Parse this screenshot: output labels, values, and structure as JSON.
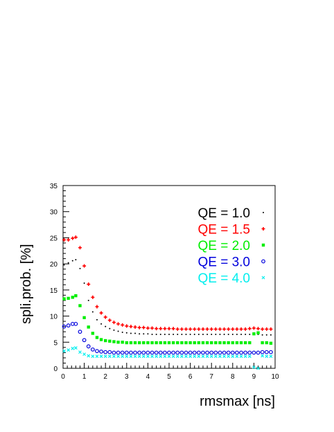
{
  "chart_data": {
    "type": "scatter",
    "title": "",
    "xlabel": "rmsmax [ns]",
    "ylabel": "spli.prob. [%]",
    "xlim": [
      0,
      10
    ],
    "ylim": [
      0,
      35
    ],
    "x_ticks": [
      "0",
      "1",
      "2",
      "3",
      "4",
      "5",
      "6",
      "7",
      "8",
      "9",
      "10"
    ],
    "y_ticks": [
      "0",
      "5",
      "10",
      "15",
      "20",
      "25",
      "30",
      "35"
    ],
    "grid": false,
    "legend_position": "top-right",
    "x": [
      0.05,
      0.25,
      0.45,
      0.6,
      0.8,
      1.0,
      1.2,
      1.4,
      1.6,
      1.8,
      2.0,
      2.2,
      2.4,
      2.6,
      2.8,
      3.0,
      3.2,
      3.4,
      3.6,
      3.8,
      4.0,
      4.2,
      4.4,
      4.6,
      4.8,
      5.0,
      5.2,
      5.4,
      5.6,
      5.8,
      6.0,
      6.2,
      6.4,
      6.6,
      6.8,
      7.0,
      7.2,
      7.4,
      7.6,
      7.8,
      8.0,
      8.2,
      8.4,
      8.6,
      8.8,
      9.0,
      9.2,
      9.4,
      9.6,
      9.8
    ],
    "series": [
      {
        "name": "QE = 1.0",
        "color": "#000000",
        "marker": "dot",
        "values": [
          19.8,
          20.2,
          20.6,
          20.8,
          19.1,
          16.3,
          13.0,
          10.8,
          9.3,
          8.5,
          8.0,
          7.6,
          7.3,
          7.1,
          6.9,
          6.8,
          6.7,
          6.7,
          6.6,
          6.6,
          6.6,
          6.5,
          6.5,
          6.5,
          6.5,
          6.5,
          6.5,
          6.5,
          6.5,
          6.5,
          6.5,
          6.5,
          6.5,
          6.5,
          6.5,
          6.5,
          6.5,
          6.5,
          6.5,
          6.5,
          6.5,
          6.5,
          6.5,
          6.5,
          6.5,
          6.5,
          6.5,
          6.4,
          6.4,
          6.4
        ]
      },
      {
        "name": "QE = 1.5",
        "color": "#ff0000",
        "marker": "plus",
        "values": [
          24.6,
          24.6,
          24.9,
          25.1,
          23.1,
          19.6,
          16.1,
          13.6,
          11.8,
          10.6,
          9.8,
          9.2,
          8.8,
          8.5,
          8.3,
          8.1,
          8.0,
          7.9,
          7.8,
          7.8,
          7.7,
          7.7,
          7.6,
          7.6,
          7.6,
          7.6,
          7.6,
          7.5,
          7.5,
          7.5,
          7.5,
          7.5,
          7.5,
          7.5,
          7.5,
          7.5,
          7.5,
          7.5,
          7.5,
          7.5,
          7.5,
          7.5,
          7.5,
          7.5,
          7.6,
          7.7,
          7.6,
          7.5,
          7.5,
          7.5
        ]
      },
      {
        "name": "QE = 2.0",
        "color": "#00ee00",
        "marker": "square",
        "values": [
          13.3,
          13.4,
          13.6,
          13.9,
          12.0,
          9.7,
          7.9,
          6.7,
          5.9,
          5.5,
          5.3,
          5.2,
          5.1,
          5.0,
          5.0,
          4.9,
          4.9,
          4.9,
          4.9,
          4.9,
          4.9,
          4.9,
          4.9,
          4.9,
          4.9,
          4.9,
          4.9,
          4.9,
          4.9,
          4.9,
          4.9,
          4.9,
          4.9,
          4.9,
          4.9,
          4.9,
          4.9,
          4.9,
          4.9,
          4.9,
          4.9,
          4.9,
          4.9,
          4.9,
          4.9,
          6.6,
          6.8,
          4.9,
          4.9,
          4.8
        ]
      },
      {
        "name": "QE = 3.0",
        "color": "#0000dd",
        "marker": "circle",
        "values": [
          8.0,
          8.2,
          8.5,
          8.5,
          7.0,
          5.4,
          4.2,
          3.6,
          3.3,
          3.2,
          3.1,
          3.1,
          3.0,
          3.0,
          3.0,
          3.0,
          3.0,
          3.0,
          3.0,
          3.0,
          3.0,
          3.0,
          3.0,
          3.0,
          3.0,
          3.0,
          3.0,
          3.0,
          3.0,
          3.0,
          3.0,
          3.0,
          3.0,
          3.0,
          3.0,
          3.0,
          3.0,
          3.0,
          3.0,
          3.0,
          3.0,
          3.0,
          3.0,
          3.0,
          3.0,
          3.0,
          3.0,
          3.1,
          3.1,
          3.1
        ]
      },
      {
        "name": "QE = 4.0",
        "color": "#00eeee",
        "marker": "cross",
        "values": [
          3.3,
          3.5,
          3.8,
          3.9,
          3.1,
          2.7,
          2.4,
          2.3,
          2.3,
          2.3,
          2.3,
          2.3,
          2.3,
          2.3,
          2.3,
          2.3,
          2.3,
          2.3,
          2.3,
          2.3,
          2.3,
          2.3,
          2.3,
          2.3,
          2.3,
          2.3,
          2.3,
          2.3,
          2.3,
          2.3,
          2.3,
          2.3,
          2.3,
          2.3,
          2.3,
          2.3,
          2.3,
          2.3,
          2.3,
          2.3,
          2.3,
          2.3,
          2.3,
          2.3,
          2.3,
          0.2,
          0.0,
          2.4,
          2.3,
          2.3
        ]
      }
    ]
  }
}
